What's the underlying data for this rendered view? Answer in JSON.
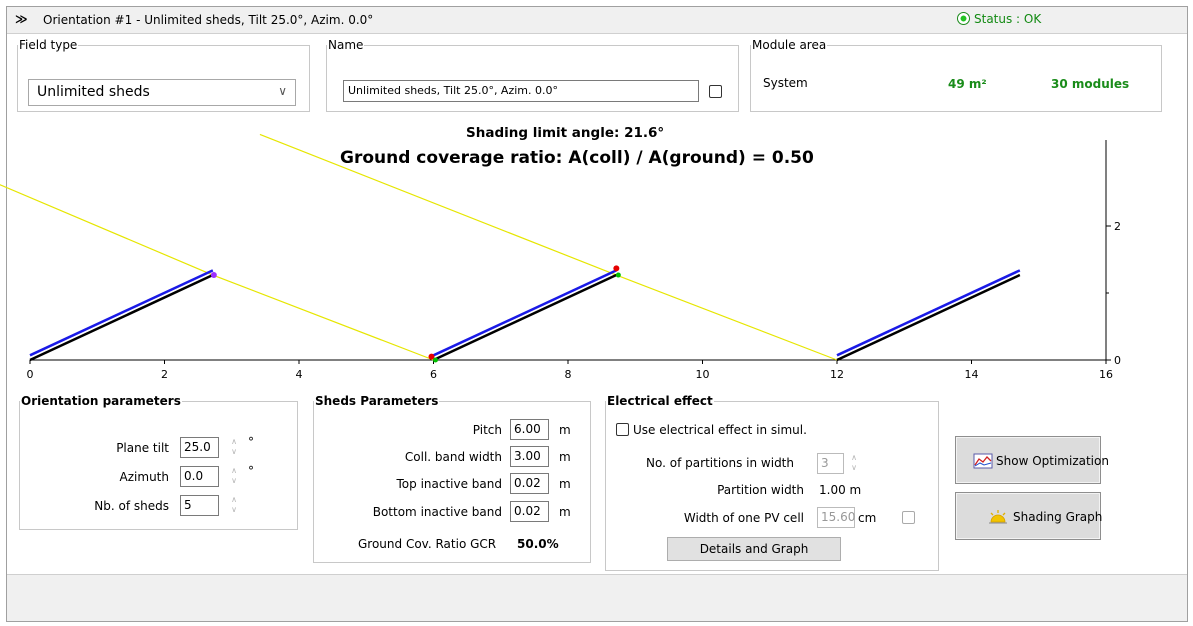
{
  "header": {
    "collapse_icon": "double-chevron-down-icon",
    "title": "Orientation #1 - Unlimited sheds, Tilt 25.0°, Azim. 0.0°",
    "status": "Status : OK",
    "status_color": "#1a8c1a"
  },
  "field_type": {
    "legend": "Field type",
    "value": "Unlimited sheds"
  },
  "name": {
    "legend": "Name",
    "value": "Unlimited sheds, Tilt 25.0°, Azim. 0.0°"
  },
  "module_area": {
    "legend": "Module area",
    "system_label": "System",
    "area": "49 m²",
    "modules": "30 modules"
  },
  "chart": {
    "shading_limit": "Shading limit angle:  21.6°",
    "gcr_title": "Ground coverage ratio: A(coll) / A(ground) = 0.50"
  },
  "chart_data": {
    "type": "line",
    "title": "Ground coverage ratio: A(coll) / A(ground) = 0.50",
    "subtitle": "Shading limit angle:  21.6°",
    "xlim": [
      0,
      16
    ],
    "ylim": [
      0,
      2.8
    ],
    "x_ticks": [
      "0",
      "2",
      "4",
      "6",
      "8",
      "10",
      "12",
      "14",
      "16"
    ],
    "y_ticks": [
      "0",
      "2"
    ],
    "pitch": 6.0,
    "collector_width": 3.0,
    "tilt_deg": 25.0,
    "sheds_x_start": [
      0,
      6,
      12
    ],
    "shading_limit_deg": 21.6,
    "colors": {
      "collector": "#1a1ae6",
      "ground_line": "#000000",
      "shading_ray": "#e6e600",
      "marker_red": "#e60000",
      "marker_green": "#00c000",
      "marker_purple": "#9b30ff"
    }
  },
  "orientation": {
    "legend": "Orientation parameters",
    "plane_tilt_label": "Plane tilt",
    "plane_tilt": "25.0",
    "azimuth_label": "Azimuth",
    "azimuth": "0.0",
    "nb_sheds_label": "Nb. of sheds",
    "nb_sheds": "5",
    "deg": "°"
  },
  "sheds": {
    "legend": "Sheds Parameters",
    "pitch_label": "Pitch",
    "pitch": "6.00",
    "coll_band_label": "Coll. band width",
    "coll_band": "3.00",
    "top_inactive_label": "Top inactive band",
    "top_inactive": "0.02",
    "bottom_inactive_label": "Bottom inactive band",
    "bottom_inactive": "0.02",
    "unit": "m",
    "gcr_label": "Ground Cov. Ratio GCR",
    "gcr": "50.0%"
  },
  "electrical": {
    "legend": "Electrical effect",
    "use_label": "Use electrical effect in simul.",
    "partitions_label": "No. of partitions in width",
    "partitions": "3",
    "partition_width_label": "Partition width",
    "partition_width": "1.00 m",
    "cell_width_label": "Width of one PV cell",
    "cell_width": "15.60",
    "cell_unit": "cm",
    "details_button": "Details and Graph"
  },
  "buttons": {
    "show_optimization": "Show Optimization",
    "shading_graph": "Shading Graph"
  }
}
